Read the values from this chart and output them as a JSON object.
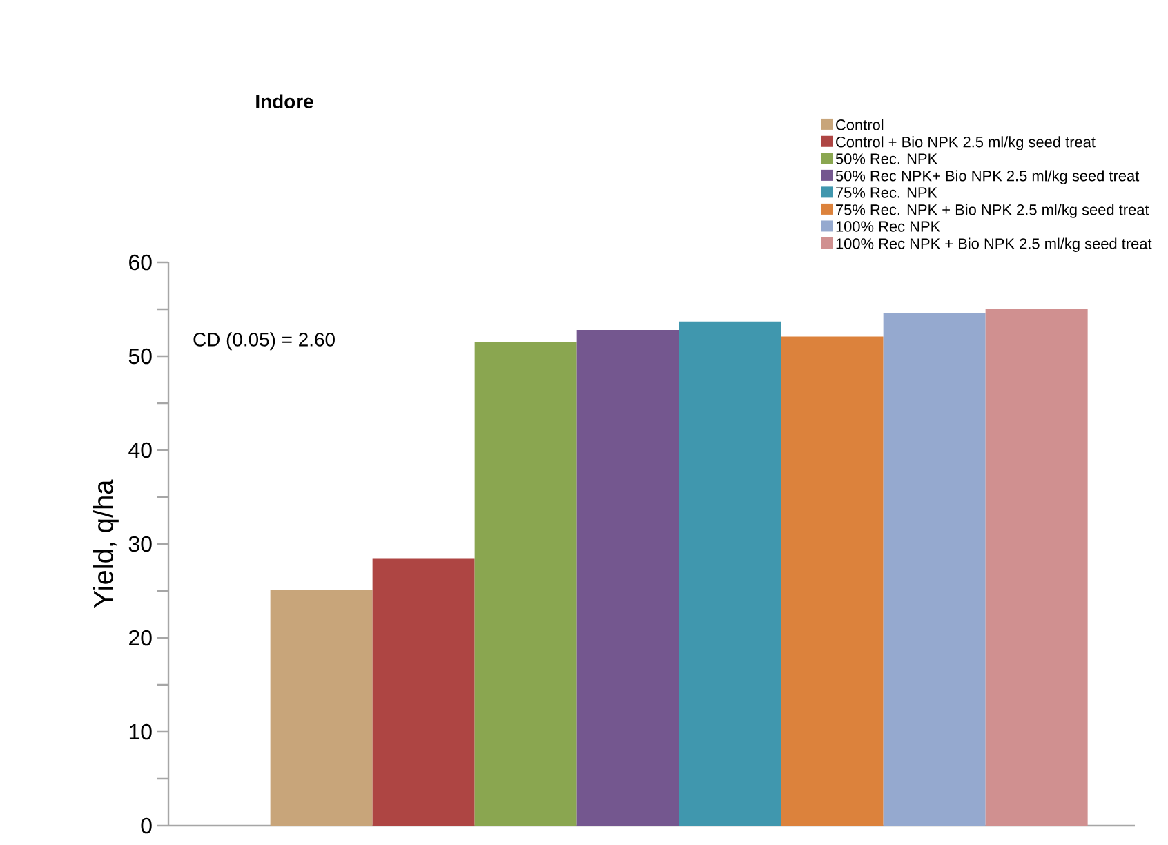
{
  "chart_data": {
    "type": "bar",
    "title": "Indore",
    "ylabel": "Yield, q/ha",
    "categories": [
      null
    ],
    "series": [
      {
        "name": "Control",
        "color": "#c8a57a",
        "values": [
          25.1
        ]
      },
      {
        "name": "Control +  Bio NPK 2.5 ml/kg seed treat",
        "color": "#ae4543",
        "values": [
          28.5
        ]
      },
      {
        "name": "50% Rec. NPK",
        "color": "#8aa650",
        "values": [
          51.5
        ]
      },
      {
        "name": "50% Rec NPK+ Bio NPK 2.5 ml/kg seed treat",
        "color": "#74578f",
        "values": [
          52.8
        ]
      },
      {
        "name": "75% Rec. NPK",
        "color": "#4097ae",
        "values": [
          53.7
        ]
      },
      {
        "name": "75% Rec. NPK + Bio NPK 2.5 ml/kg seed treat",
        "color": "#dc823c",
        "values": [
          52.1
        ]
      },
      {
        "name": "100% Rec NPK",
        "color": "#95a9cf",
        "values": [
          54.6
        ]
      },
      {
        "name": "100% Rec NPK + Bio NPK 2.5 ml/kg seed treat",
        "color": "#d09090",
        "values": [
          55.0
        ]
      }
    ],
    "ylim": [
      0,
      60
    ],
    "yticks": [
      0,
      10,
      20,
      30,
      40,
      50,
      60
    ],
    "annotations": [
      "CD (0.05) = 2.60"
    ],
    "legend": "top right"
  }
}
